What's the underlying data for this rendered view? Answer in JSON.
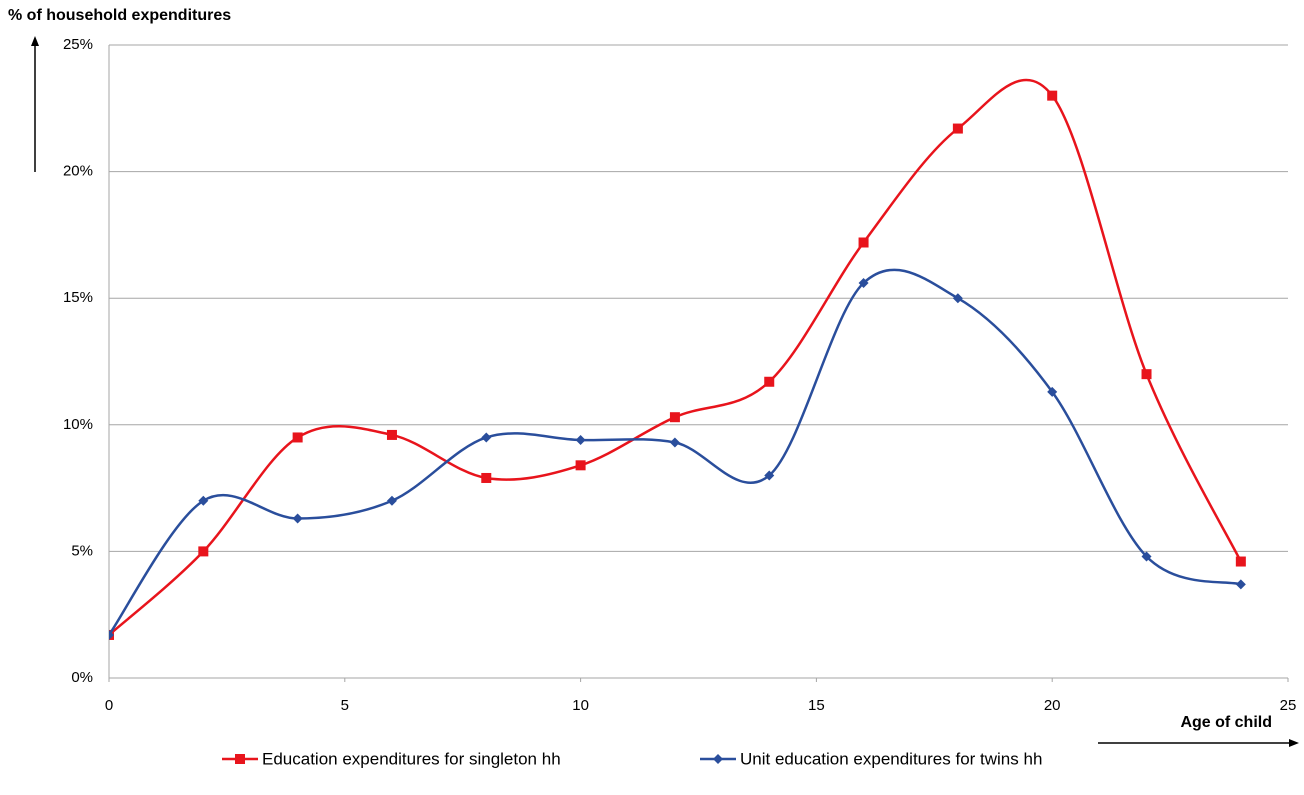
{
  "chart_data": {
    "type": "line",
    "y_label": "% of household expenditures",
    "x_label": "Age of child",
    "x": [
      0,
      2,
      4,
      6,
      8,
      10,
      12,
      14,
      16,
      18,
      20,
      22,
      24
    ],
    "series": [
      {
        "name": "Education expenditures for singleton hh",
        "color": "#e8141c",
        "marker": "square",
        "values": [
          1.7,
          5.0,
          9.5,
          9.6,
          7.9,
          8.4,
          10.3,
          11.7,
          17.2,
          21.7,
          23.0,
          12.0,
          4.6
        ]
      },
      {
        "name": "Unit education expenditures for twins hh",
        "color": "#2a4e9c",
        "marker": "diamond",
        "values": [
          1.7,
          7.0,
          6.3,
          7.0,
          9.5,
          9.4,
          9.3,
          8.0,
          15.6,
          15.0,
          11.3,
          4.8,
          3.7
        ]
      }
    ],
    "xlim": [
      0,
      25
    ],
    "xticks": [
      0,
      5,
      10,
      15,
      20,
      25
    ],
    "ylim": [
      0,
      25
    ],
    "yticks": [
      {
        "value": 0,
        "label": "0%"
      },
      {
        "value": 5,
        "label": "5%"
      },
      {
        "value": 10,
        "label": "10%"
      },
      {
        "value": 15,
        "label": "15%"
      },
      {
        "value": 20,
        "label": "20%"
      },
      {
        "value": 25,
        "label": "25%"
      }
    ],
    "grid": true,
    "smooth": true,
    "legend": "bottom"
  }
}
